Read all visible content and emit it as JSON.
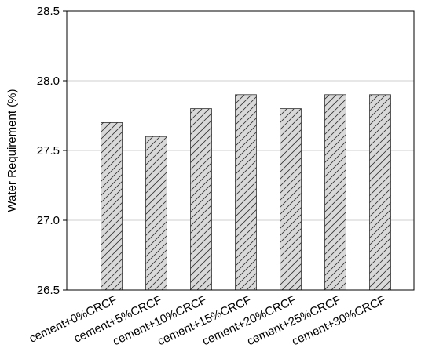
{
  "chart_data": {
    "type": "bar",
    "y_label": "Water Requirement (%)",
    "categories": [
      "cement+0%CRCF",
      "cement+5%CRCF",
      "cement+10%CRCF",
      "cement+15%CRCF",
      "cement+20%CRCF",
      "cement+25%CRCF",
      "cement+30%CRCF"
    ],
    "values": [
      27.7,
      27.6,
      27.8,
      27.9,
      27.8,
      27.9,
      27.9
    ],
    "color": "#d9d9d9",
    "hatch": "/",
    "ylim": [
      26.5,
      28.5
    ],
    "yticks": [
      26.5,
      {
        "value": 27,
        "label": "27.0"
      },
      27.5,
      {
        "value": 28,
        "label": "28.0"
      },
      28.5
    ],
    "grid": true
  }
}
